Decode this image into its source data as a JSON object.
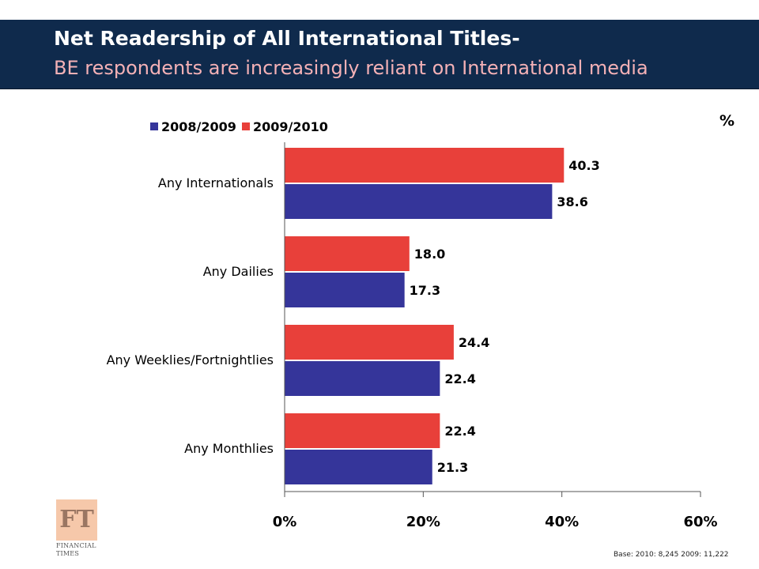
{
  "header": {
    "title": "Net Readership of All International Titles-",
    "subtitle": "BE respondents are increasingly reliant on International media"
  },
  "unit_label": "%",
  "logo": {
    "mark": "FT",
    "name_line1": "FINANCIAL",
    "name_line2": "TIMES"
  },
  "footnote": "Base: 2010: 8,245  2009: 11,222",
  "chart_data": {
    "type": "bar",
    "orientation": "horizontal",
    "categories": [
      "Any Internationals",
      "Any Dailies",
      "Any Weeklies/Fortnightlies",
      "Any Monthlies"
    ],
    "series": [
      {
        "name": "2009/2010",
        "color": "#e8403a",
        "values": [
          40.3,
          18.0,
          24.4,
          22.4
        ],
        "labels": [
          "40.3",
          "18.0",
          "24.4",
          "22.4"
        ]
      },
      {
        "name": "2008/2009",
        "color": "#35359a",
        "values": [
          38.6,
          17.3,
          22.4,
          21.3
        ],
        "labels": [
          "38.6",
          "17.3",
          "22.4",
          "21.3"
        ]
      }
    ],
    "legend_order": [
      "2008/2009",
      "2009/2010"
    ],
    "legend_position": "top",
    "xlim": [
      0,
      60
    ],
    "xticks": [
      0,
      20,
      40,
      60
    ],
    "xtick_labels": [
      "0%",
      "20%",
      "40%",
      "60%"
    ],
    "grid": false
  }
}
